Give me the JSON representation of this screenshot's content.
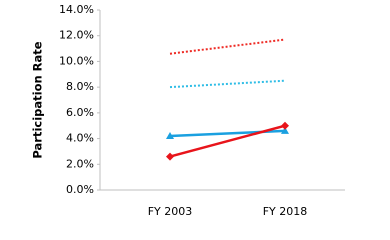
{
  "chart_data": {
    "type": "line",
    "y_label": "Participation Rate",
    "categories": [
      "FY 2003",
      "FY 2018"
    ],
    "series": [
      {
        "color": "#ee2a24",
        "dash": "dotted",
        "values": [
          10.6,
          11.7
        ]
      },
      {
        "color": "#2fbde6",
        "dash": "dotted",
        "values": [
          8.0,
          8.5
        ]
      },
      {
        "color": "#1aa0e0",
        "dash": "solid",
        "marker": "triangle",
        "values": [
          4.2,
          4.6
        ]
      },
      {
        "color": "#e8141b",
        "dash": "solid",
        "marker": "diamond",
        "values": [
          2.6,
          5.0
        ]
      }
    ],
    "ylim": [
      0,
      14
    ],
    "yticks": [
      {
        "value": 0,
        "label": "0.0%"
      },
      {
        "value": 2,
        "label": "2.0%"
      },
      {
        "value": 4,
        "label": "4.0%"
      },
      {
        "value": 6,
        "label": "6.0%"
      },
      {
        "value": 8,
        "label": "8.0%"
      },
      {
        "value": 10,
        "label": "10.0%"
      },
      {
        "value": 12,
        "label": "12.0%"
      },
      {
        "value": 14,
        "label": "14.0%"
      }
    ],
    "grid": false
  }
}
